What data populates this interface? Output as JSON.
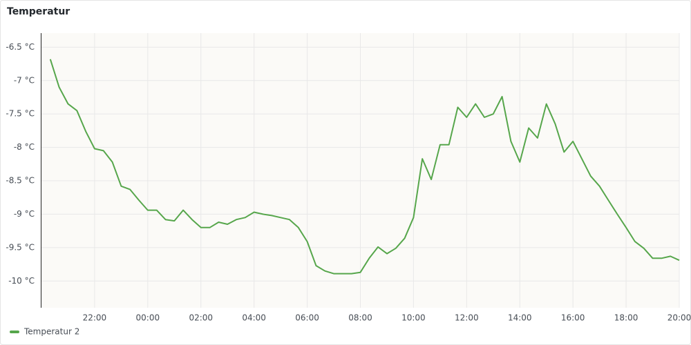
{
  "chart_data": {
    "type": "line",
    "title": "Temperatur",
    "x": [
      "20:20",
      "20:40",
      "21:00",
      "21:20",
      "21:40",
      "22:00",
      "22:20",
      "22:40",
      "23:00",
      "23:20",
      "23:40",
      "00:00",
      "00:20",
      "00:40",
      "01:00",
      "01:20",
      "01:40",
      "02:00",
      "02:20",
      "02:40",
      "03:00",
      "03:20",
      "03:40",
      "04:00",
      "04:20",
      "04:40",
      "05:00",
      "05:20",
      "05:40",
      "06:00",
      "06:20",
      "06:40",
      "07:00",
      "07:20",
      "07:40",
      "08:00",
      "08:20",
      "08:40",
      "09:00",
      "09:20",
      "09:40",
      "10:00",
      "10:20",
      "10:40",
      "11:00",
      "11:20",
      "11:40",
      "12:00",
      "12:20",
      "12:40",
      "13:00",
      "13:20",
      "13:40",
      "14:00",
      "14:20",
      "14:40",
      "15:00",
      "15:20",
      "15:40",
      "16:00",
      "16:20",
      "16:40",
      "17:00",
      "17:20",
      "17:40",
      "18:00",
      "18:20",
      "18:40",
      "19:00",
      "19:20",
      "19:40",
      "20:00"
    ],
    "series": [
      {
        "name": "Temperatur 2",
        "color": "#56a64b",
        "values": [
          -6.68,
          -7.1,
          -7.35,
          -7.45,
          -7.76,
          -8.02,
          -8.05,
          -8.22,
          -8.58,
          -8.63,
          -8.79,
          -8.94,
          -8.94,
          -9.08,
          -9.1,
          -8.94,
          -9.08,
          -9.2,
          -9.2,
          -9.12,
          -9.15,
          -9.08,
          -9.05,
          -8.97,
          -9.0,
          -9.02,
          -9.05,
          -9.08,
          -9.2,
          -9.41,
          -9.77,
          -9.85,
          -9.89,
          -9.89,
          -9.89,
          -9.87,
          -9.66,
          -9.49,
          -9.59,
          -9.51,
          -9.36,
          -9.05,
          -8.17,
          -8.48,
          -7.96,
          -7.96,
          -7.4,
          -7.55,
          -7.35,
          -7.55,
          -7.5,
          -7.24,
          -7.91,
          -8.22,
          -7.71,
          -7.86,
          -7.35,
          -7.65,
          -8.07,
          -7.91,
          -8.17,
          -8.43,
          -8.58,
          -8.79,
          -9.0,
          -9.2,
          -9.41,
          -9.51,
          -9.66,
          -9.66,
          -9.63,
          -9.69
        ]
      }
    ],
    "xticks": [
      "22:00",
      "00:00",
      "02:00",
      "04:00",
      "06:00",
      "08:00",
      "10:00",
      "12:00",
      "14:00",
      "16:00",
      "18:00",
      "20:00"
    ],
    "ylim": [
      -10.4,
      -6.29
    ],
    "yticks": [
      {
        "value": -10,
        "label": "-10 °C"
      },
      {
        "value": -9.5,
        "label": "-9.5 °C"
      },
      {
        "value": -9,
        "label": "-9 °C"
      },
      {
        "value": -8.5,
        "label": "-8.5 °C"
      },
      {
        "value": -8,
        "label": "-8 °C"
      },
      {
        "value": -7.5,
        "label": "-7.5 °C"
      },
      {
        "value": -7,
        "label": "-7 °C"
      },
      {
        "value": -6.5,
        "label": "-6.5 °C"
      }
    ],
    "grid": true
  }
}
